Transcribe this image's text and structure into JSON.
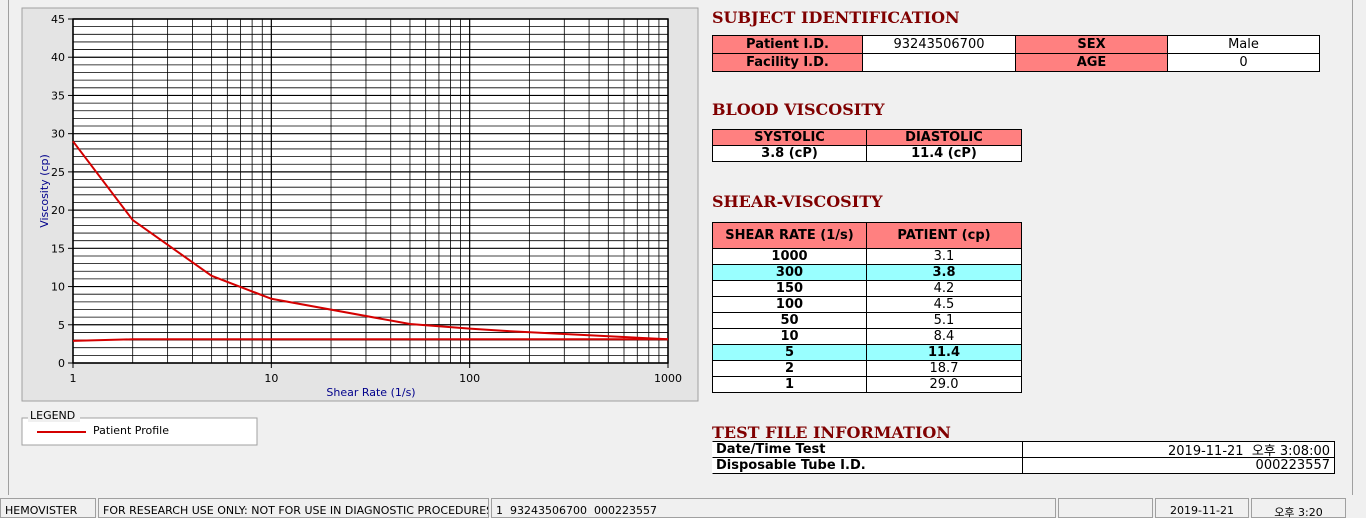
{
  "chart_data": {
    "type": "line",
    "xlabel": "Shear Rate (1/s)",
    "ylabel": "Viscosity (cp)",
    "x": [
      1,
      2,
      5,
      10,
      50,
      100,
      150,
      300,
      1000
    ],
    "series": [
      {
        "name": "Patient Profile",
        "color": "#d40000",
        "values": [
          29.0,
          18.7,
          11.4,
          8.4,
          5.1,
          4.5,
          4.2,
          3.8,
          3.1
        ]
      },
      {
        "color": "#d40000",
        "values": [
          2.9,
          3.1,
          3.1,
          3.1,
          3.1,
          3.1,
          3.1,
          3.1,
          3.1
        ]
      }
    ],
    "xlim": [
      1,
      1000
    ],
    "xticks": [
      1,
      10,
      100,
      1000
    ],
    "xscale": "log",
    "ylim": [
      0,
      45
    ],
    "yticks": [
      0,
      5,
      10,
      15,
      20,
      25,
      30,
      35,
      40,
      45
    ],
    "grid": true,
    "minor_grid": true,
    "legend_title": "LEGEND"
  },
  "subject": {
    "title": "SUBJECT IDENTIFICATION",
    "patient_id_label": "Patient I.D.",
    "patient_id": "93243506700",
    "sex_label": "SEX",
    "sex": "Male",
    "facility_id_label": "Facility I.D.",
    "age_label": "AGE",
    "age": "0"
  },
  "blood_viscosity": {
    "title": "BLOOD VISCOSITY",
    "headers": [
      "SYSTOLIC",
      "DIASTOLIC"
    ],
    "values": [
      "3.8 (cP)",
      "11.4 (cP)"
    ]
  },
  "shear_viscosity": {
    "title": "SHEAR-VISCOSITY",
    "headers": [
      "SHEAR RATE (1/s)",
      "PATIENT (cp)"
    ],
    "rows": [
      {
        "rate": "1000",
        "patient": "3.1"
      },
      {
        "rate": "300",
        "patient": "3.8",
        "highlighted": true
      },
      {
        "rate": "150",
        "patient": "4.2"
      },
      {
        "rate": "100",
        "patient": "4.5"
      },
      {
        "rate": "50",
        "patient": "5.1"
      },
      {
        "rate": "10",
        "patient": "8.4"
      },
      {
        "rate": "5",
        "patient": "11.4",
        "highlighted": true
      },
      {
        "rate": "2",
        "patient": "18.7"
      },
      {
        "rate": "1",
        "patient": "29.0"
      }
    ]
  },
  "test_file": {
    "title": "TEST FILE INFORMATION",
    "rows": [
      [
        "Date/Time Test",
        "2019-11-21  오후 3:08:00"
      ],
      [
        "Disposable Tube I.D.",
        "000223557"
      ]
    ]
  },
  "status_bar": [
    "HEMOVISTER",
    "FOR RESEARCH USE ONLY: NOT FOR USE IN DIAGNOSTIC PROCEDURES",
    "1  93243506700  000223557",
    "",
    "2019-11-21",
    "오후 3:20"
  ]
}
